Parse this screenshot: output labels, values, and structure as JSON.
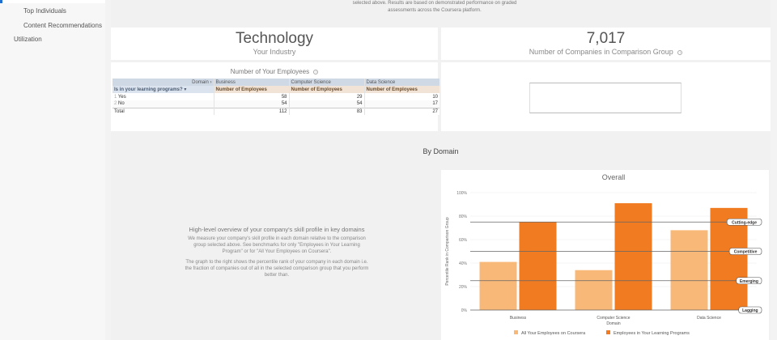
{
  "sidebar": {
    "items": [
      {
        "label": "Top Individuals"
      },
      {
        "label": "Content Recommendations"
      },
      {
        "label": "Utilization"
      }
    ]
  },
  "top_note": {
    "line1": "selected above. Results are based on demonstrated performance on graded",
    "line2": "assessments across the Coursera platform."
  },
  "industry": {
    "value": "Technology",
    "label": "Your Industry"
  },
  "comparison": {
    "value": "7,017",
    "label": "Number of Companies in Comparison Group"
  },
  "employees_table": {
    "title": "Number of Your Employees",
    "domain_header": "Domain",
    "row_header": "Is in your learning programs?",
    "domains": [
      "Business",
      "Computer Science",
      "Data Science"
    ],
    "metric_label": "Number of Employees",
    "rows": [
      {
        "index": "1",
        "label": "Yes",
        "values": [
          "58",
          "29",
          "10"
        ]
      },
      {
        "index": "2",
        "label": "No",
        "values": [
          "54",
          "54",
          "17"
        ]
      }
    ],
    "total": {
      "label": "Total",
      "values": [
        "112",
        "83",
        "27"
      ]
    }
  },
  "by_domain": {
    "title": "By Domain",
    "description": {
      "heading": "High-level overview of your company's skill profile in key domains",
      "p1": "We measure your company's skill profile in each domain relative to the comparison group selected above. See benchmarks for only \"Employees in Your Learning Program\" or for \"All Your Employees on Coursera\".",
      "p2": "The graph to the right shows the percentile rank of your company in each domain i.e. the fraction of companies out of all in the selected comparison group that you perform better than."
    }
  },
  "chart_data": {
    "type": "bar",
    "title": "Overall",
    "xlabel": "Domain",
    "ylabel": "Percentile Rank in Comparison Group",
    "categories": [
      "Business",
      "Computer Science",
      "Data Science"
    ],
    "series": [
      {
        "name": "All Your Employees on Coursera",
        "values": [
          41,
          34,
          68
        ],
        "color": "#f8b878"
      },
      {
        "name": "Employees in Your Learning Programs",
        "values": [
          75,
          91,
          87
        ],
        "color": "#f07b20"
      }
    ],
    "ylim": [
      0,
      100
    ],
    "yticks": [
      "0%",
      "20%",
      "40%",
      "60%",
      "80%",
      "100%"
    ],
    "reference_lines": [
      {
        "label": "Cutting-edge",
        "value": 75
      },
      {
        "label": "Competitive",
        "value": 50
      },
      {
        "label": "Emerging",
        "value": 25
      },
      {
        "label": "Lagging",
        "value": 0
      }
    ],
    "legend_position": "bottom"
  }
}
